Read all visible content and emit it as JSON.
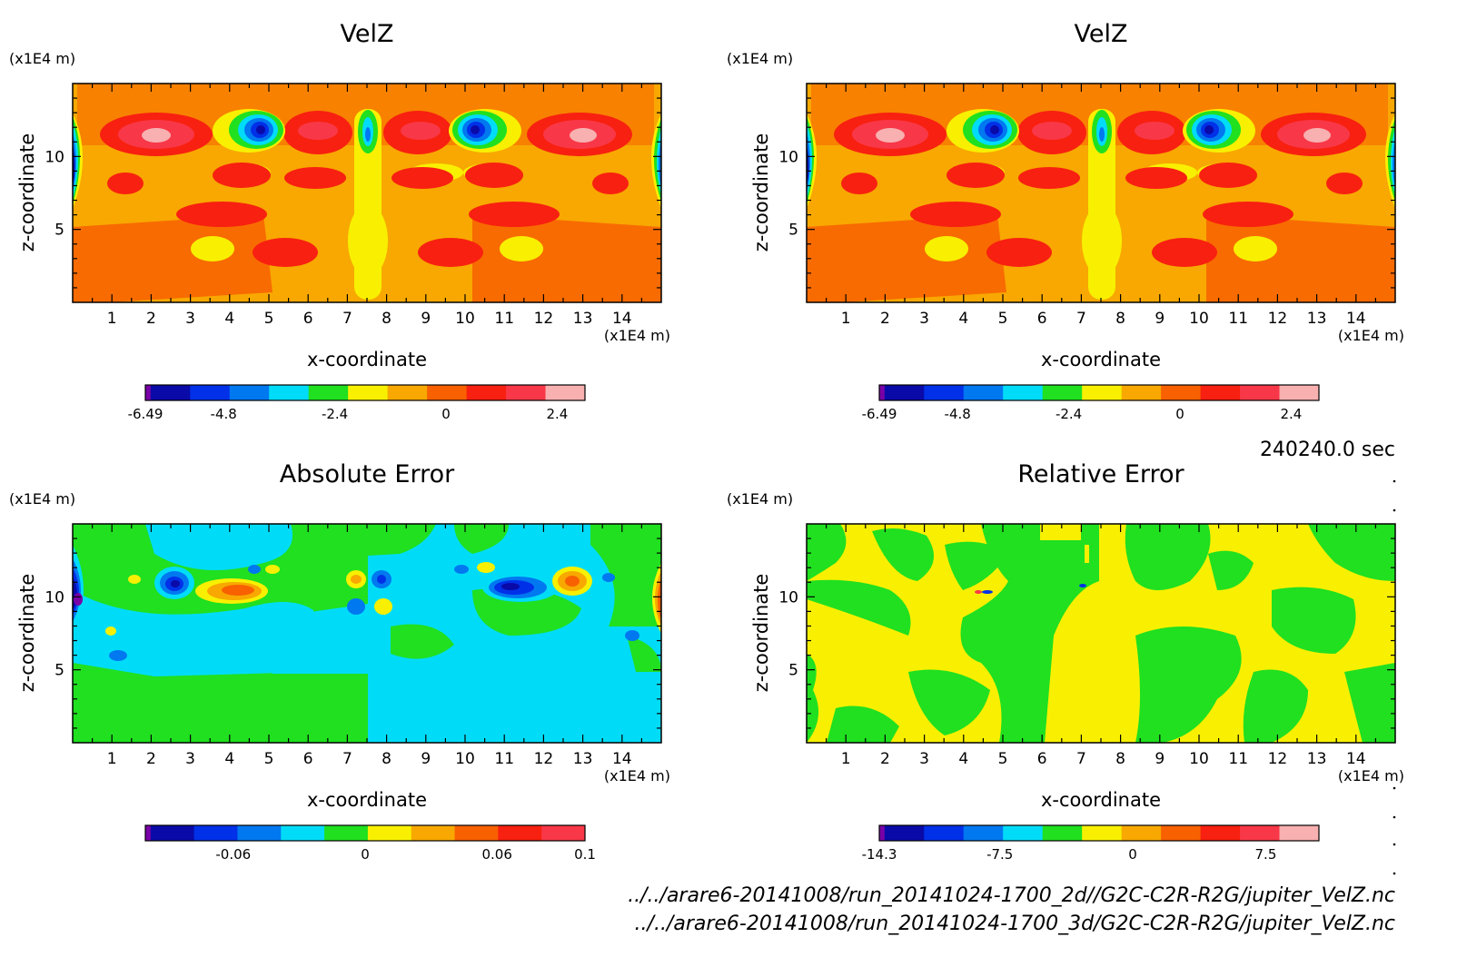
{
  "time_label": "240240.0 sec",
  "footer_paths": [
    "../../arare6-20141008/run_20141024-1700_2d//G2C-C2R-R2G/jupiter_VelZ.nc",
    "../../arare6-20141008/run_20141024-1700_3d/G2C-C2R-R2G/jupiter_VelZ.nc"
  ],
  "chart_data": [
    {
      "type": "heatmap",
      "title": "VelZ",
      "xlabel": "x-coordinate",
      "ylabel": "z-coordinate",
      "x_unit": "(x1E4 m)",
      "z_unit": "(x1E4 m)",
      "xlim": [
        0,
        15
      ],
      "ylim": [
        0,
        15
      ],
      "x_ticks": [
        "1",
        "2",
        "3",
        "4",
        "5",
        "6",
        "7",
        "8",
        "9",
        "10",
        "11",
        "12",
        "13",
        "14"
      ],
      "z_ticks": [
        "5",
        "10"
      ],
      "colorbar": {
        "ticks": [
          "-6.49",
          "-4.8",
          "-2.4",
          "0",
          "2.4"
        ],
        "tick_values": [
          -6.49,
          -4.8,
          -2.4,
          0,
          2.4
        ],
        "range": [
          -6.49,
          3.0
        ],
        "colors": [
          "#7a00a8",
          "#0a0aa8",
          "#0030e8",
          "#0078f0",
          "#00dcf8",
          "#20e020",
          "#f8f000",
          "#f8a800",
          "#f86000",
          "#f82010",
          "#f83848",
          "#f8b0b0"
        ]
      }
    },
    {
      "type": "heatmap",
      "title": "VelZ",
      "xlabel": "x-coordinate",
      "ylabel": "z-coordinate",
      "x_unit": "(x1E4 m)",
      "z_unit": "(x1E4 m)",
      "xlim": [
        0,
        15
      ],
      "ylim": [
        0,
        15
      ],
      "x_ticks": [
        "1",
        "2",
        "3",
        "4",
        "5",
        "6",
        "7",
        "8",
        "9",
        "10",
        "11",
        "12",
        "13",
        "14"
      ],
      "z_ticks": [
        "5",
        "10"
      ],
      "colorbar": {
        "ticks": [
          "-6.49",
          "-4.8",
          "-2.4",
          "0",
          "2.4"
        ],
        "tick_values": [
          -6.49,
          -4.8,
          -2.4,
          0,
          2.4
        ],
        "range": [
          -6.49,
          3.0
        ],
        "colors": [
          "#7a00a8",
          "#0a0aa8",
          "#0030e8",
          "#0078f0",
          "#00dcf8",
          "#20e020",
          "#f8f000",
          "#f8a800",
          "#f86000",
          "#f82010",
          "#f83848",
          "#f8b0b0"
        ]
      }
    },
    {
      "type": "heatmap",
      "title": "Absolute Error",
      "xlabel": "x-coordinate",
      "ylabel": "z-coordinate",
      "x_unit": "(x1E4 m)",
      "z_unit": "(x1E4 m)",
      "xlim": [
        0,
        15
      ],
      "ylim": [
        0,
        15
      ],
      "x_ticks": [
        "1",
        "2",
        "3",
        "4",
        "5",
        "6",
        "7",
        "8",
        "9",
        "10",
        "11",
        "12",
        "13",
        "14"
      ],
      "z_ticks": [
        "5",
        "10"
      ],
      "colorbar": {
        "ticks": [
          "-0.06",
          "0",
          "0.06",
          "0.1"
        ],
        "tick_values": [
          -0.06,
          0,
          0.06,
          0.1
        ],
        "range": [
          -0.1,
          0.1
        ],
        "colors": [
          "#7a00a8",
          "#0a0aa8",
          "#0030e8",
          "#0078f0",
          "#00dcf8",
          "#20e020",
          "#f8f000",
          "#f8a800",
          "#f86000",
          "#f82010",
          "#f83848"
        ]
      }
    },
    {
      "type": "heatmap",
      "title": "Relative Error",
      "xlabel": "x-coordinate",
      "ylabel": "z-coordinate",
      "x_unit": "(x1E4 m)",
      "z_unit": "(x1E4 m)",
      "xlim": [
        0,
        15
      ],
      "ylim": [
        0,
        15
      ],
      "x_ticks": [
        "1",
        "2",
        "3",
        "4",
        "5",
        "6",
        "7",
        "8",
        "9",
        "10",
        "11",
        "12",
        "13",
        "14"
      ],
      "z_ticks": [
        "5",
        "10"
      ],
      "colorbar": {
        "ticks": [
          "-14.3",
          "-7.5",
          "0",
          "7.5"
        ],
        "tick_values": [
          -14.3,
          -7.5,
          0,
          7.5
        ],
        "range": [
          -14.3,
          10.5
        ],
        "colors": [
          "#7a00a8",
          "#0a0aa8",
          "#0030e8",
          "#0078f0",
          "#00dcf8",
          "#20e020",
          "#f8f000",
          "#f8a800",
          "#f86000",
          "#f82010",
          "#f83848",
          "#f8b0b0"
        ]
      }
    }
  ]
}
